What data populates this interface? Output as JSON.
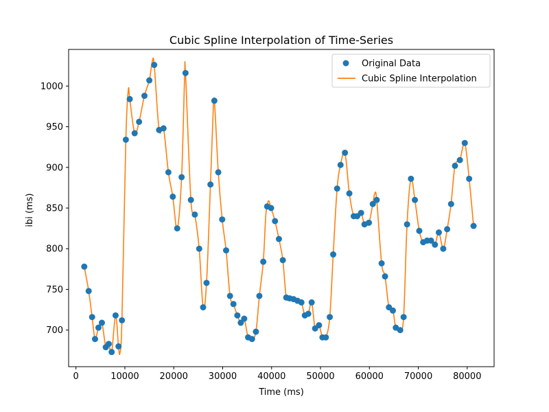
{
  "chart_data": {
    "type": "scatter+line",
    "title": "Cubic Spline Interpolation of Time-Series",
    "xlabel": "Time (ms)",
    "ylabel": "ibi (ms)",
    "xlim": [
      -1500,
      85500
    ],
    "ylim": [
      655,
      1045
    ],
    "x_ticks": [
      0,
      10000,
      20000,
      30000,
      40000,
      50000,
      60000,
      70000,
      80000
    ],
    "y_ticks": [
      700,
      750,
      800,
      850,
      900,
      950,
      1000
    ],
    "legend": {
      "placement": "top-right",
      "entries": [
        {
          "label": "Original Data",
          "marker": "dot",
          "color": "#1f77b4"
        },
        {
          "label": "Cubic Spline Interpolation",
          "marker": "line",
          "color": "#ff7f0e"
        }
      ]
    },
    "series": [
      {
        "name": "Original Data",
        "kind": "scatter",
        "color": "#1f77b4",
        "points": [
          [
            1700,
            778
          ],
          [
            2600,
            748
          ],
          [
            3300,
            716
          ],
          [
            3900,
            689
          ],
          [
            4600,
            703
          ],
          [
            5300,
            709
          ],
          [
            6100,
            679
          ],
          [
            6700,
            683
          ],
          [
            7300,
            673
          ],
          [
            8100,
            718
          ],
          [
            8700,
            680
          ],
          [
            9400,
            712
          ],
          [
            10200,
            934
          ],
          [
            11000,
            984
          ],
          [
            12000,
            942
          ],
          [
            12900,
            956
          ],
          [
            14000,
            988
          ],
          [
            15000,
            1007
          ],
          [
            16000,
            1026
          ],
          [
            17000,
            946
          ],
          [
            17900,
            948
          ],
          [
            18900,
            894
          ],
          [
            19800,
            864
          ],
          [
            20700,
            825
          ],
          [
            21600,
            888
          ],
          [
            22400,
            1016
          ],
          [
            23500,
            860
          ],
          [
            24300,
            842
          ],
          [
            25200,
            800
          ],
          [
            26000,
            728
          ],
          [
            26700,
            758
          ],
          [
            27500,
            879
          ],
          [
            28300,
            982
          ],
          [
            29100,
            894
          ],
          [
            29900,
            836
          ],
          [
            30700,
            798
          ],
          [
            31500,
            742
          ],
          [
            32200,
            732
          ],
          [
            33000,
            718
          ],
          [
            33700,
            709
          ],
          [
            34400,
            714
          ],
          [
            35200,
            691
          ],
          [
            36000,
            689
          ],
          [
            36800,
            698
          ],
          [
            37500,
            742
          ],
          [
            38300,
            784
          ],
          [
            39100,
            852
          ],
          [
            39900,
            850
          ],
          [
            40700,
            834
          ],
          [
            41500,
            812
          ],
          [
            42300,
            786
          ],
          [
            43000,
            740
          ],
          [
            43700,
            739
          ],
          [
            44500,
            738
          ],
          [
            45300,
            736
          ],
          [
            46100,
            734
          ],
          [
            46800,
            718
          ],
          [
            47500,
            720
          ],
          [
            48200,
            734
          ],
          [
            48900,
            702
          ],
          [
            49700,
            706
          ],
          [
            50400,
            691
          ],
          [
            51100,
            691
          ],
          [
            51900,
            716
          ],
          [
            52600,
            793
          ],
          [
            53400,
            874
          ],
          [
            54100,
            903
          ],
          [
            55000,
            918
          ],
          [
            55900,
            868
          ],
          [
            56800,
            840
          ],
          [
            57500,
            840
          ],
          [
            58300,
            844
          ],
          [
            59000,
            830
          ],
          [
            59900,
            832
          ],
          [
            60700,
            855
          ],
          [
            61500,
            860
          ],
          [
            62500,
            782
          ],
          [
            63200,
            766
          ],
          [
            64000,
            728
          ],
          [
            64800,
            724
          ],
          [
            65400,
            703
          ],
          [
            66300,
            700
          ],
          [
            67000,
            716
          ],
          [
            67700,
            830
          ],
          [
            68500,
            886
          ],
          [
            69300,
            860
          ],
          [
            70200,
            822
          ],
          [
            71000,
            808
          ],
          [
            71800,
            810
          ],
          [
            72600,
            810
          ],
          [
            73400,
            805
          ],
          [
            74200,
            820
          ],
          [
            75100,
            800
          ],
          [
            75900,
            824
          ],
          [
            76700,
            855
          ],
          [
            77500,
            902
          ],
          [
            78500,
            909
          ],
          [
            79500,
            930
          ],
          [
            80400,
            886
          ],
          [
            81300,
            828
          ]
        ]
      },
      {
        "name": "Cubic Spline Interpolation",
        "kind": "line",
        "color": "#ff7f0e",
        "points": [
          [
            1700,
            778
          ],
          [
            2600,
            748
          ],
          [
            3300,
            716
          ],
          [
            3900,
            689
          ],
          [
            4600,
            703
          ],
          [
            5300,
            709
          ],
          [
            6100,
            679
          ],
          [
            6700,
            683
          ],
          [
            7300,
            673
          ],
          [
            8100,
            718
          ],
          [
            8700,
            680
          ],
          [
            9000,
            672
          ],
          [
            9400,
            712
          ],
          [
            10200,
            934
          ],
          [
            10700,
            995
          ],
          [
            11000,
            984
          ],
          [
            12000,
            942
          ],
          [
            12900,
            956
          ],
          [
            14000,
            988
          ],
          [
            15000,
            1007
          ],
          [
            15600,
            1030
          ],
          [
            16000,
            1026
          ],
          [
            17000,
            946
          ],
          [
            17900,
            948
          ],
          [
            18900,
            894
          ],
          [
            19800,
            864
          ],
          [
            20700,
            825
          ],
          [
            21600,
            888
          ],
          [
            22200,
            1008
          ],
          [
            22400,
            1016
          ],
          [
            23500,
            860
          ],
          [
            24300,
            842
          ],
          [
            25200,
            800
          ],
          [
            26000,
            728
          ],
          [
            26700,
            758
          ],
          [
            27500,
            879
          ],
          [
            28000,
            960
          ],
          [
            28300,
            982
          ],
          [
            29100,
            894
          ],
          [
            29900,
            836
          ],
          [
            30700,
            798
          ],
          [
            31500,
            742
          ],
          [
            32200,
            732
          ],
          [
            33000,
            718
          ],
          [
            33700,
            709
          ],
          [
            34400,
            714
          ],
          [
            35200,
            691
          ],
          [
            36000,
            689
          ],
          [
            36800,
            698
          ],
          [
            37500,
            742
          ],
          [
            38300,
            784
          ],
          [
            38800,
            840
          ],
          [
            39100,
            852
          ],
          [
            39400,
            859
          ],
          [
            39900,
            850
          ],
          [
            40700,
            834
          ],
          [
            41500,
            812
          ],
          [
            42300,
            786
          ],
          [
            43000,
            740
          ],
          [
            43700,
            739
          ],
          [
            44500,
            738
          ],
          [
            45300,
            736
          ],
          [
            46100,
            734
          ],
          [
            46800,
            718
          ],
          [
            47500,
            720
          ],
          [
            48200,
            734
          ],
          [
            48900,
            702
          ],
          [
            49700,
            706
          ],
          [
            50400,
            691
          ],
          [
            51100,
            691
          ],
          [
            51900,
            716
          ],
          [
            52600,
            793
          ],
          [
            53400,
            874
          ],
          [
            54100,
            903
          ],
          [
            55000,
            918
          ],
          [
            55900,
            868
          ],
          [
            56800,
            840
          ],
          [
            57500,
            840
          ],
          [
            58300,
            844
          ],
          [
            59000,
            830
          ],
          [
            59900,
            832
          ],
          [
            60700,
            855
          ],
          [
            61100,
            868
          ],
          [
            61500,
            860
          ],
          [
            62500,
            782
          ],
          [
            63200,
            766
          ],
          [
            64000,
            728
          ],
          [
            64800,
            724
          ],
          [
            65400,
            703
          ],
          [
            66300,
            700
          ],
          [
            67000,
            716
          ],
          [
            67700,
            830
          ],
          [
            68500,
            886
          ],
          [
            69300,
            860
          ],
          [
            70200,
            822
          ],
          [
            71000,
            808
          ],
          [
            71800,
            810
          ],
          [
            72600,
            810
          ],
          [
            73400,
            805
          ],
          [
            74200,
            820
          ],
          [
            75100,
            800
          ],
          [
            75900,
            824
          ],
          [
            76700,
            855
          ],
          [
            77500,
            902
          ],
          [
            78500,
            909
          ],
          [
            79500,
            930
          ],
          [
            80400,
            886
          ],
          [
            81300,
            828
          ]
        ]
      }
    ]
  }
}
